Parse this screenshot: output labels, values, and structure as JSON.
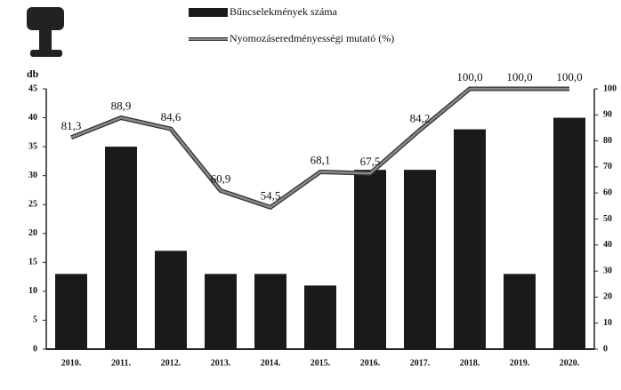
{
  "chart_data": {
    "type": "bar-line",
    "categories": [
      "2010.",
      "2011.",
      "2012.",
      "2013.",
      "2014.",
      "2015.",
      "2016.",
      "2017.",
      "2018.",
      "2019.",
      "2020."
    ],
    "series": [
      {
        "name": "Bűncselekmények száma",
        "color": "#1a1a1a",
        "type": "bar",
        "values": [
          13,
          35,
          17,
          13,
          13,
          11,
          31,
          31,
          38,
          13,
          40
        ]
      },
      {
        "name": "Nyomozáseredményességi mutató (%)",
        "color": "#888888",
        "type": "line",
        "axis": "y2",
        "values": [
          81.3,
          88.9,
          84.6,
          60.9,
          54.5,
          68.1,
          67.5,
          84.2,
          100.0,
          100.0,
          100.0
        ],
        "value_labels": [
          "81,3",
          "88,9",
          "84,6",
          "60,9",
          "54,5",
          "68,1",
          "67,5",
          "84,2",
          "100,0",
          "100,0",
          "100,0"
        ]
      }
    ],
    "ylabel": "db",
    "ylim": [
      0,
      45
    ],
    "yticks": [
      0,
      5,
      10,
      15,
      20,
      25,
      30,
      35,
      40,
      45
    ],
    "y2lim": [
      0,
      100
    ],
    "y2ticks": [
      0,
      10,
      20,
      30,
      40,
      50,
      60,
      70,
      80,
      90,
      100
    ],
    "legend": "top"
  }
}
